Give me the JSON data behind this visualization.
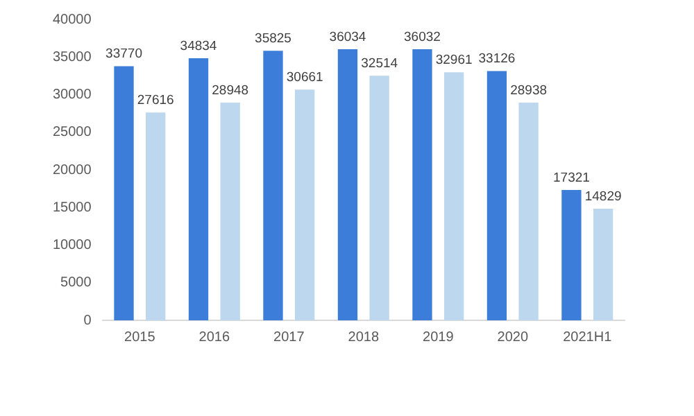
{
  "chart_data": {
    "type": "bar",
    "categories": [
      "2015",
      "2016",
      "2017",
      "2018",
      "2019",
      "2020",
      "2021H1"
    ],
    "series": [
      {
        "color": "#3b7dd8",
        "values": [
          33770,
          34834,
          35825,
          36034,
          36032,
          33126,
          17321
        ]
      },
      {
        "color": "#bdd7ee",
        "values": [
          27616,
          28948,
          30661,
          32514,
          32961,
          28938,
          14829
        ]
      }
    ],
    "ylim": [
      0,
      40000
    ],
    "yticks": [
      0,
      5000,
      10000,
      15000,
      20000,
      25000,
      30000,
      35000,
      40000
    ],
    "grid": false,
    "legend": false,
    "data_labels": true
  }
}
